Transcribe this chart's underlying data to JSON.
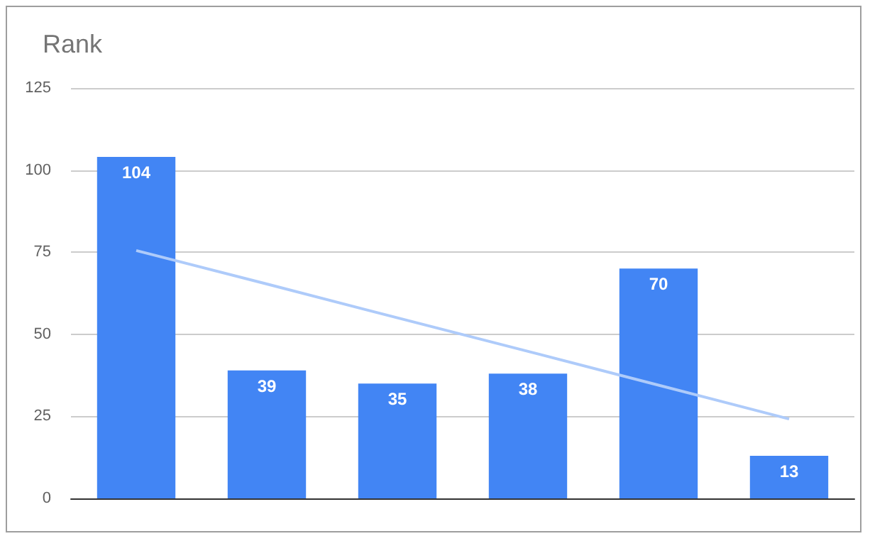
{
  "chart_data": {
    "type": "bar",
    "title": "Rank",
    "categories": [
      null,
      null,
      null,
      null,
      null,
      null
    ],
    "series": [
      {
        "color": "#4285f4",
        "values": [
          104,
          39,
          35,
          38,
          70,
          13
        ],
        "value_labels": [
          "104",
          "39",
          "35",
          "38",
          "70",
          "13"
        ]
      },
      {
        "type": "line",
        "color": "#aecbfa",
        "values": [
          75.5,
          65.3,
          55.0,
          44.8,
          34.5,
          24.2
        ],
        "marker": "none"
      }
    ],
    "ylim": [
      0,
      125
    ],
    "yticks": [
      0,
      25,
      50,
      75,
      100,
      125
    ],
    "grid": "y"
  }
}
